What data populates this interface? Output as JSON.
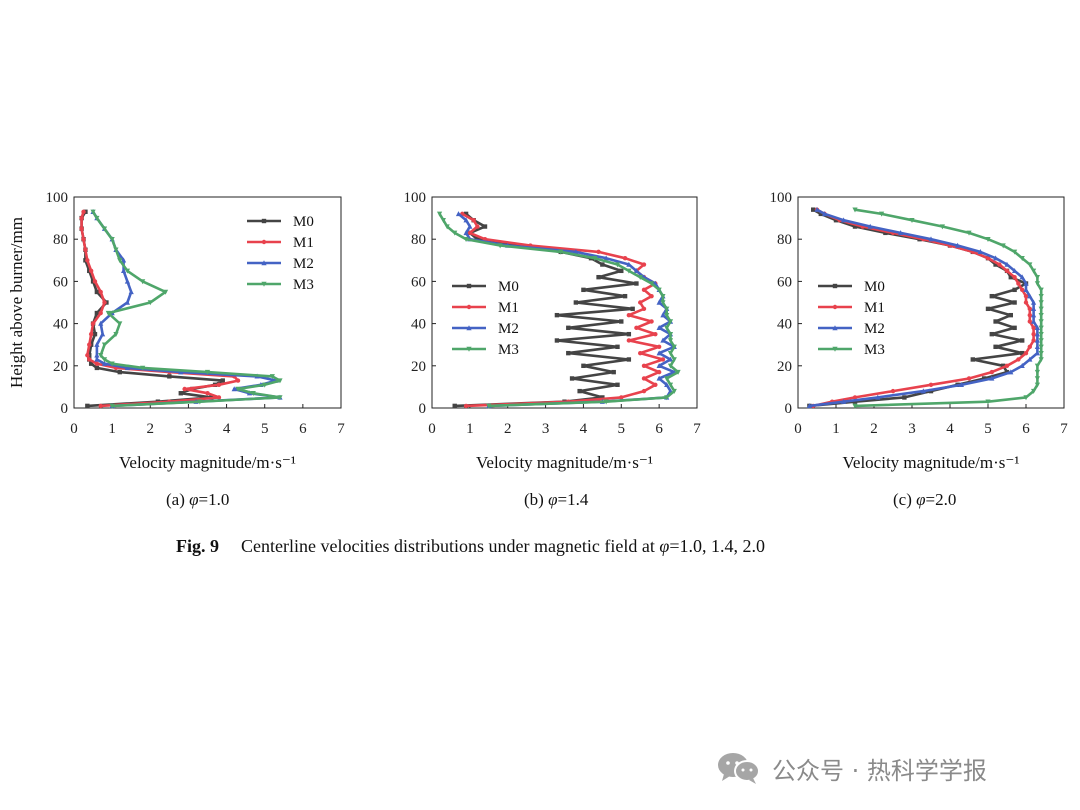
{
  "figure": {
    "fig_number": "Fig. 9",
    "caption_prefix": "Centerline velocities distributions under magnetic field at ",
    "caption_symbol": "φ",
    "caption_suffix": "=1.0, 1.4, 2.0",
    "watermark": "公众号 · 热科学学报",
    "watermark_icon": "wechat-icon"
  },
  "colors": {
    "M0": "#444444",
    "M1": "#e8424d",
    "M2": "#4463c4",
    "M3": "#4fa66a"
  },
  "chart_data": [
    {
      "type": "line",
      "panel_prefix": "(a) ",
      "panel_symbol": "φ",
      "panel_value": "=1.0",
      "xlabel": "Velocity magnitude/m·s⁻¹",
      "ylabel": "Height above burner/mm",
      "xlim": [
        0,
        7
      ],
      "ylim": [
        0,
        100
      ],
      "xticks": [
        "0",
        "1",
        "2",
        "3",
        "4",
        "5",
        "6",
        "7"
      ],
      "yticks": [
        "0",
        "20",
        "40",
        "60",
        "80",
        "100"
      ],
      "legend_position": "top-right",
      "series": [
        {
          "name": "M0",
          "y": [
            1,
            3,
            5,
            7,
            9,
            11,
            13,
            15,
            17,
            19,
            21,
            23,
            25,
            30,
            35,
            40,
            45,
            50,
            55,
            60,
            65,
            70,
            75,
            80,
            85,
            90,
            93
          ],
          "x": [
            0.35,
            2.2,
            3.6,
            2.8,
            3.1,
            3.7,
            3.9,
            2.5,
            1.2,
            0.6,
            0.45,
            0.4,
            0.4,
            0.45,
            0.55,
            0.5,
            0.6,
            0.85,
            0.6,
            0.5,
            0.4,
            0.3,
            0.3,
            0.25,
            0.2,
            0.2,
            0.3
          ]
        },
        {
          "name": "M1",
          "y": [
            1,
            3,
            5,
            7,
            9,
            11,
            13,
            15,
            17,
            19,
            21,
            23,
            25,
            30,
            35,
            40,
            45,
            50,
            55,
            60,
            65,
            70,
            75,
            80,
            85,
            90,
            93
          ],
          "x": [
            0.7,
            2.5,
            3.8,
            3.5,
            2.9,
            3.8,
            4.3,
            4.2,
            2.5,
            1.1,
            0.6,
            0.4,
            0.35,
            0.4,
            0.45,
            0.5,
            0.7,
            0.8,
            0.7,
            0.55,
            0.45,
            0.35,
            0.3,
            0.25,
            0.2,
            0.2,
            0.25
          ]
        },
        {
          "name": "M2",
          "y": [
            1,
            3,
            5,
            7,
            9,
            11,
            13,
            15,
            17,
            19,
            21,
            23,
            25,
            30,
            35,
            40,
            45,
            50,
            55,
            60,
            65,
            70,
            75,
            80,
            85,
            90,
            93
          ],
          "x": [
            1.0,
            3.2,
            5.4,
            4.6,
            4.2,
            4.9,
            5.3,
            4.8,
            2.8,
            1.4,
            0.8,
            0.6,
            0.6,
            0.6,
            0.75,
            0.7,
            1.0,
            1.4,
            1.5,
            1.4,
            1.3,
            1.3,
            1.1,
            1.0,
            0.8,
            0.6,
            0.5
          ]
        },
        {
          "name": "M3",
          "y": [
            1,
            3,
            5,
            7,
            9,
            11,
            13,
            15,
            17,
            19,
            21,
            23,
            25,
            30,
            35,
            40,
            45,
            50,
            55,
            60,
            65,
            70,
            75,
            80,
            85,
            90,
            93
          ],
          "x": [
            1.0,
            3.3,
            5.4,
            4.7,
            4.3,
            5.0,
            5.4,
            5.2,
            3.5,
            1.8,
            1.0,
            0.8,
            0.7,
            0.8,
            1.1,
            1.2,
            0.9,
            2.0,
            2.4,
            1.8,
            1.4,
            1.2,
            1.1,
            1.0,
            0.8,
            0.6,
            0.5
          ]
        }
      ]
    },
    {
      "type": "line",
      "panel_prefix": "(b) ",
      "panel_symbol": "φ",
      "panel_value": "=1.4",
      "xlabel": "Velocity magnitude/m·s⁻¹",
      "ylabel": "",
      "xlim": [
        0,
        7
      ],
      "ylim": [
        0,
        100
      ],
      "xticks": [
        "0",
        "1",
        "2",
        "3",
        "4",
        "5",
        "6",
        "7"
      ],
      "yticks": [
        "0",
        "20",
        "40",
        "60",
        "80",
        "100"
      ],
      "legend_position": "middle-left",
      "series": [
        {
          "name": "M0",
          "y": [
            1,
            3,
            5,
            8,
            11,
            14,
            17,
            20,
            23,
            26,
            29,
            32,
            35,
            38,
            41,
            44,
            47,
            50,
            53,
            56,
            59,
            62,
            65,
            68,
            71,
            74,
            77,
            80,
            83,
            86,
            89,
            92
          ],
          "x": [
            0.6,
            3.5,
            4.5,
            3.9,
            4.9,
            3.7,
            4.8,
            4.0,
            5.2,
            3.6,
            4.9,
            3.3,
            5.2,
            3.6,
            5.0,
            3.3,
            5.3,
            3.8,
            5.1,
            4.0,
            5.4,
            4.4,
            5.0,
            4.5,
            4.2,
            3.4,
            2.2,
            1.2,
            1.0,
            1.4,
            1.1,
            0.9
          ]
        },
        {
          "name": "M1",
          "y": [
            1,
            3,
            5,
            8,
            11,
            14,
            17,
            20,
            23,
            26,
            29,
            32,
            35,
            38,
            41,
            44,
            47,
            50,
            53,
            56,
            59,
            62,
            65,
            68,
            71,
            74,
            77,
            80,
            83,
            86,
            89,
            92
          ],
          "x": [
            0.9,
            3.6,
            5.0,
            5.6,
            5.9,
            5.6,
            6.0,
            5.6,
            6.1,
            5.5,
            6.0,
            5.2,
            5.9,
            5.4,
            5.8,
            5.2,
            5.6,
            5.5,
            5.8,
            5.6,
            5.9,
            5.6,
            5.4,
            5.6,
            5.1,
            4.4,
            2.6,
            1.4,
            1.0,
            1.2,
            1.1,
            0.8
          ]
        },
        {
          "name": "M2",
          "y": [
            1,
            3,
            5,
            8,
            11,
            14,
            17,
            20,
            23,
            26,
            29,
            32,
            35,
            38,
            41,
            44,
            47,
            50,
            53,
            56,
            59,
            62,
            65,
            68,
            71,
            74,
            77,
            80,
            83,
            86,
            89,
            92
          ],
          "x": [
            1.5,
            4.5,
            6.2,
            6.3,
            6.2,
            6.0,
            6.4,
            6.0,
            6.3,
            6.0,
            6.4,
            6.1,
            6.3,
            6.0,
            6.3,
            6.1,
            6.2,
            6.0,
            6.1,
            6.0,
            5.9,
            5.6,
            5.4,
            5.2,
            4.6,
            3.8,
            2.0,
            1.0,
            0.9,
            1.0,
            0.9,
            0.7
          ]
        },
        {
          "name": "M3",
          "y": [
            1,
            3,
            5,
            8,
            11,
            14,
            17,
            20,
            23,
            26,
            29,
            32,
            35,
            38,
            41,
            44,
            47,
            50,
            53,
            56,
            59,
            62,
            65,
            68,
            71,
            74,
            77,
            80,
            83,
            86,
            89,
            92
          ],
          "x": [
            1.5,
            4.6,
            6.2,
            6.4,
            6.3,
            6.2,
            6.5,
            6.3,
            6.4,
            6.3,
            6.4,
            6.3,
            6.3,
            6.2,
            6.3,
            6.2,
            6.2,
            6.1,
            6.1,
            6.0,
            5.8,
            5.5,
            5.2,
            4.9,
            4.3,
            3.4,
            1.8,
            0.9,
            0.6,
            0.4,
            0.3,
            0.2
          ]
        }
      ]
    },
    {
      "type": "line",
      "panel_prefix": "(c) ",
      "panel_symbol": "φ",
      "panel_value": "=2.0",
      "xlabel": "Velocity magnitude/m·s⁻¹",
      "ylabel": "",
      "xlim": [
        0,
        7
      ],
      "ylim": [
        0,
        100
      ],
      "xticks": [
        "0",
        "1",
        "2",
        "3",
        "4",
        "5",
        "6",
        "7"
      ],
      "yticks": [
        "0",
        "20",
        "40",
        "60",
        "80",
        "100"
      ],
      "legend_position": "middle-left",
      "series": [
        {
          "name": "M0",
          "y": [
            1,
            3,
            5,
            8,
            11,
            14,
            17,
            20,
            23,
            26,
            29,
            32,
            35,
            38,
            41,
            44,
            47,
            50,
            53,
            56,
            59,
            62,
            65,
            68,
            71,
            74,
            77,
            80,
            83,
            86,
            89,
            92,
            94
          ],
          "x": [
            0.3,
            1.5,
            2.8,
            3.5,
            4.2,
            4.9,
            5.5,
            5.4,
            4.6,
            5.9,
            5.2,
            5.9,
            5.1,
            5.7,
            5.2,
            5.6,
            5.0,
            5.7,
            5.1,
            5.7,
            6.0,
            5.6,
            5.5,
            5.2,
            5.0,
            4.6,
            4.0,
            3.2,
            2.3,
            1.5,
            1.0,
            0.6,
            0.4
          ]
        },
        {
          "name": "M1",
          "y": [
            1,
            3,
            5,
            8,
            11,
            14,
            17,
            20,
            23,
            26,
            29,
            32,
            35,
            38,
            41,
            44,
            47,
            50,
            53,
            56,
            59,
            62,
            65,
            68,
            71,
            74,
            77,
            80,
            83,
            86,
            89,
            92,
            94
          ],
          "x": [
            0.4,
            0.9,
            1.5,
            2.5,
            3.5,
            4.5,
            5.1,
            5.5,
            5.8,
            6.0,
            6.1,
            6.2,
            6.2,
            6.2,
            6.1,
            6.1,
            6.1,
            6.0,
            6.0,
            5.9,
            5.8,
            5.7,
            5.5,
            5.3,
            5.0,
            4.6,
            4.0,
            3.3,
            2.5,
            1.7,
            1.1,
            0.7,
            0.5
          ]
        },
        {
          "name": "M2",
          "y": [
            1,
            3,
            5,
            8,
            11,
            14,
            17,
            20,
            23,
            26,
            29,
            32,
            35,
            38,
            41,
            44,
            47,
            50,
            53,
            56,
            59,
            62,
            65,
            68,
            71,
            74,
            77,
            80,
            83,
            86,
            89,
            92,
            94
          ],
          "x": [
            0.3,
            1.2,
            2.1,
            3.3,
            4.3,
            5.1,
            5.6,
            5.9,
            6.1,
            6.3,
            6.3,
            6.3,
            6.3,
            6.3,
            6.2,
            6.2,
            6.2,
            6.2,
            6.1,
            6.0,
            6.0,
            5.9,
            5.7,
            5.5,
            5.2,
            4.8,
            4.2,
            3.5,
            2.7,
            1.9,
            1.2,
            0.7,
            0.5
          ]
        },
        {
          "name": "M3",
          "y": [
            1,
            3,
            5,
            8,
            11,
            14,
            17,
            20,
            23,
            26,
            29,
            32,
            35,
            38,
            41,
            44,
            47,
            50,
            53,
            56,
            59,
            62,
            65,
            68,
            71,
            74,
            77,
            80,
            83,
            86,
            89,
            92,
            94
          ],
          "x": [
            1.5,
            5.0,
            6.0,
            6.2,
            6.3,
            6.3,
            6.3,
            6.3,
            6.4,
            6.4,
            6.4,
            6.4,
            6.4,
            6.4,
            6.4,
            6.4,
            6.4,
            6.4,
            6.4,
            6.4,
            6.3,
            6.3,
            6.2,
            6.1,
            5.9,
            5.7,
            5.4,
            5.0,
            4.5,
            3.8,
            3.0,
            2.2,
            1.5
          ]
        }
      ]
    }
  ]
}
